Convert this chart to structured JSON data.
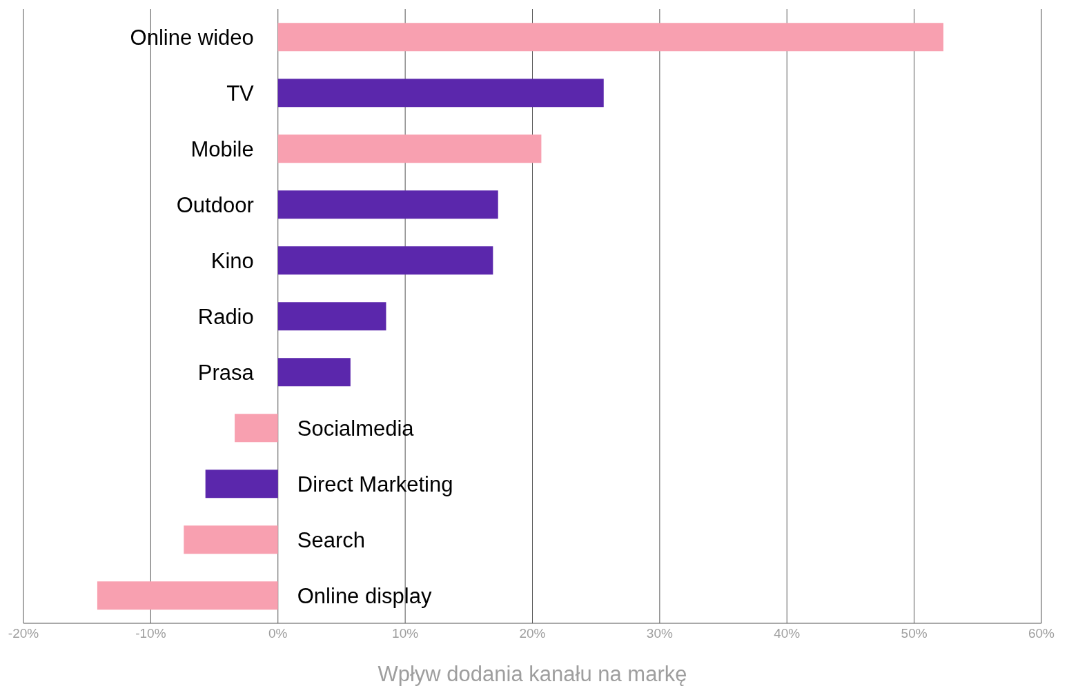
{
  "chart_data": {
    "type": "bar",
    "orientation": "horizontal",
    "xlabel": "Wpływ dodania kanału na markę",
    "categories": [
      "Online wideo",
      "TV",
      "Mobile",
      "Outdoor",
      "Kino",
      "Radio",
      "Prasa",
      "Socialmedia",
      "Direct Marketing",
      "Search",
      "Online display"
    ],
    "values": [
      52.3,
      25.6,
      20.7,
      17.3,
      16.9,
      8.5,
      5.7,
      -3.4,
      -5.7,
      -7.4,
      -14.2
    ],
    "colors": [
      "#f8a0b0",
      "#5b27ac",
      "#f8a0b0",
      "#5b27ac",
      "#5b27ac",
      "#5b27ac",
      "#5b27ac",
      "#f8a0b0",
      "#5b27ac",
      "#f8a0b0",
      "#f8a0b0"
    ],
    "xlim": [
      -20,
      60
    ],
    "xticks": [
      {
        "value": -20,
        "label": "-20%"
      },
      {
        "value": -10,
        "label": "-10%"
      },
      {
        "value": 0,
        "label": "0%"
      },
      {
        "value": 10,
        "label": "10%"
      },
      {
        "value": 20,
        "label": "20%"
      },
      {
        "value": 30,
        "label": "30%"
      },
      {
        "value": 40,
        "label": "40%"
      },
      {
        "value": 50,
        "label": "50%"
      },
      {
        "value": 60,
        "label": "60%"
      }
    ],
    "grid": "x",
    "legend": false
  }
}
